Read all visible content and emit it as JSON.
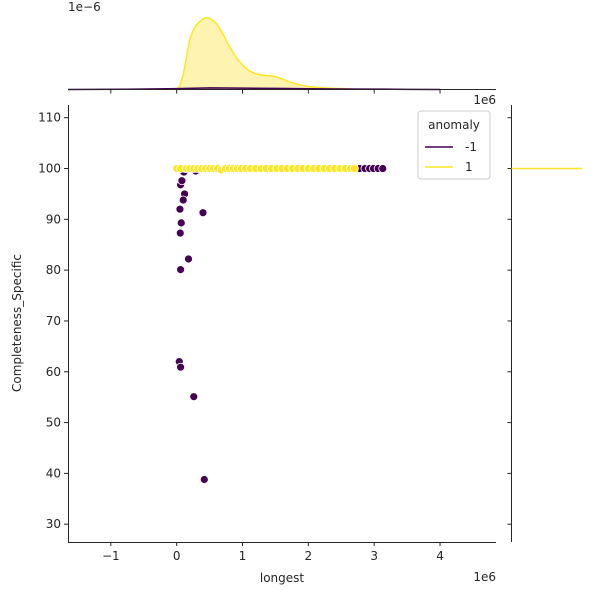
{
  "chart_data": {
    "type": "scatter",
    "xlabel": "longest",
    "ylabel": "Completeness_Specific",
    "x_offset_label": "1e6",
    "y_offset_label": "",
    "top_offset_label": "1e−6",
    "xlim": [
      -1650000,
      4850000
    ],
    "ylim": [
      26.5,
      112.5
    ],
    "x_ticks": [
      -1,
      0,
      1,
      2,
      3,
      4
    ],
    "y_ticks": [
      30,
      40,
      50,
      60,
      70,
      80,
      90,
      100,
      110
    ],
    "colors": {
      "anomaly_neg": "#440154",
      "anomaly_pos": "#fde725",
      "kde_fill": "#fef3b0"
    },
    "legend": {
      "title": "anomaly",
      "placement": "upper-right",
      "entries": [
        "-1",
        "1"
      ]
    },
    "series": [
      {
        "name": "-1",
        "points": [
          [
            40000,
            100
          ],
          [
            70000,
            100
          ],
          [
            110000,
            99.3
          ],
          [
            290000,
            99.5
          ],
          [
            130000,
            100
          ],
          [
            60000,
            96.8
          ],
          [
            80000,
            97.6
          ],
          [
            120000,
            95
          ],
          [
            100000,
            93.8
          ],
          [
            50000,
            92
          ],
          [
            70000,
            89.3
          ],
          [
            55000,
            87.3
          ],
          [
            400000,
            91.3
          ],
          [
            180000,
            82.2
          ],
          [
            60000,
            80.1
          ],
          [
            40000,
            62
          ],
          [
            60000,
            60.9
          ],
          [
            260000,
            55.1
          ],
          [
            420000,
            38.8
          ],
          [
            2700000,
            100
          ],
          [
            2780000,
            100
          ],
          [
            2860000,
            100
          ],
          [
            2930000,
            100
          ],
          [
            2990000,
            100
          ],
          [
            3060000,
            100
          ],
          [
            3130000,
            100
          ]
        ]
      },
      {
        "name": "1",
        "points": [
          [
            0,
            100
          ],
          [
            60000,
            100
          ],
          [
            150000,
            100
          ],
          [
            200000,
            100
          ],
          [
            260000,
            100
          ],
          [
            320000,
            100
          ],
          [
            380000,
            100
          ],
          [
            440000,
            100
          ],
          [
            500000,
            100
          ],
          [
            560000,
            100
          ],
          [
            620000,
            100
          ],
          [
            680000,
            99.7
          ],
          [
            740000,
            100
          ],
          [
            800000,
            100
          ],
          [
            860000,
            100
          ],
          [
            920000,
            100
          ],
          [
            980000,
            100
          ],
          [
            1050000,
            100
          ],
          [
            1120000,
            100
          ],
          [
            1200000,
            100
          ],
          [
            1280000,
            100
          ],
          [
            1360000,
            100
          ],
          [
            1440000,
            100
          ],
          [
            1520000,
            100
          ],
          [
            1600000,
            100
          ],
          [
            1680000,
            100
          ],
          [
            1760000,
            100
          ],
          [
            1840000,
            100
          ],
          [
            1920000,
            100
          ],
          [
            2000000,
            100
          ],
          [
            2080000,
            100
          ],
          [
            2160000,
            100
          ],
          [
            2240000,
            100
          ],
          [
            2320000,
            100
          ],
          [
            2400000,
            100
          ],
          [
            2480000,
            100
          ],
          [
            2560000,
            100
          ],
          [
            2640000,
            100
          ],
          [
            2700000,
            100
          ]
        ]
      }
    ],
    "top_kde": {
      "series_pos": [
        [
          0,
          0
        ],
        [
          50000,
          0.05
        ],
        [
          100000,
          0.2
        ],
        [
          150000,
          0.45
        ],
        [
          200000,
          0.7
        ],
        [
          250000,
          0.82
        ],
        [
          300000,
          0.9
        ],
        [
          350000,
          0.94
        ],
        [
          400000,
          0.98
        ],
        [
          450000,
          1.0
        ],
        [
          500000,
          0.99
        ],
        [
          550000,
          0.96
        ],
        [
          600000,
          0.92
        ],
        [
          700000,
          0.78
        ],
        [
          800000,
          0.6
        ],
        [
          900000,
          0.45
        ],
        [
          1000000,
          0.34
        ],
        [
          1100000,
          0.26
        ],
        [
          1200000,
          0.22
        ],
        [
          1300000,
          0.2
        ],
        [
          1400000,
          0.19
        ],
        [
          1500000,
          0.18
        ],
        [
          1600000,
          0.15
        ],
        [
          1700000,
          0.11
        ],
        [
          1800000,
          0.08
        ],
        [
          1900000,
          0.06
        ],
        [
          2000000,
          0.04
        ],
        [
          2200000,
          0.025
        ],
        [
          2400000,
          0.015
        ],
        [
          2600000,
          0.01
        ],
        [
          2700000,
          0
        ]
      ],
      "series_neg": [
        [
          -1650000,
          0
        ],
        [
          -800000,
          0.003
        ],
        [
          0,
          0.012
        ],
        [
          500000,
          0.022
        ],
        [
          1000000,
          0.02
        ],
        [
          1500000,
          0.015
        ],
        [
          2000000,
          0.01
        ],
        [
          2500000,
          0.007
        ],
        [
          3000000,
          0.006
        ],
        [
          3500000,
          0.002
        ],
        [
          4000000,
          0
        ]
      ]
    },
    "right_kde": {
      "line_y": 100
    }
  }
}
